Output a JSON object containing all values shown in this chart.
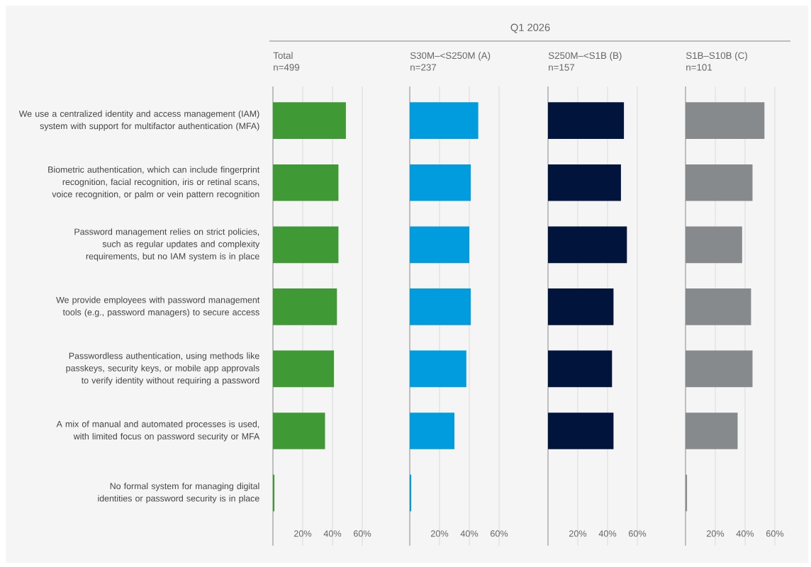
{
  "chart_data": [
    {
      "type": "bar",
      "orientation": "horizontal",
      "title": "Total",
      "subtitle": "n=499",
      "annotations": [
        "Q1 2026"
      ],
      "categories": [
        "We use a centralized identity and access management (IAM) system with support for multifactor authentication (MFA)",
        "Biometric authentication, which can include fingerprint recognition, facial recognition, iris or retinal scans, voice recognition, or palm or vein pattern recognition",
        "Password management relies on strict policies, such as regular updates and complexity requirements, but no IAM system is in place",
        "We provide employees with password management tools (e.g., password managers) to secure access",
        "Passwordless authentication, using methods like passkeys, security keys, or mobile app approvals to verify identity without requiring a password",
        "A mix of manual and automated processes is used, with limited focus on password security or MFA",
        "No formal system for managing digital identities or password security is in place"
      ],
      "values": [
        49,
        44,
        44,
        43,
        41,
        35,
        1
      ],
      "color": "#3f9a35",
      "xlim": [
        0,
        60
      ],
      "xticks": [
        {
          "value": 0,
          "label": null
        },
        {
          "value": 20,
          "label": "20%"
        },
        {
          "value": 40,
          "label": "40%"
        },
        {
          "value": 60,
          "label": "60%"
        }
      ],
      "grid": "x"
    },
    {
      "type": "bar",
      "orientation": "horizontal",
      "title": "S30M–<S250M (A)",
      "subtitle": "n=237",
      "tick_labels": "x",
      "values": [
        46,
        41,
        40,
        41,
        38,
        30,
        1
      ],
      "color": "#009cde",
      "xlim": [
        0,
        60
      ],
      "xticks": [
        {
          "value": 0,
          "label": null
        },
        {
          "value": 20,
          "label": "20%"
        },
        {
          "value": 40,
          "label": "40%"
        },
        {
          "value": 60,
          "label": "60%"
        }
      ],
      "grid": "x"
    },
    {
      "type": "bar",
      "orientation": "horizontal",
      "title": "S250M–<S1B (B)",
      "subtitle": "n=157",
      "tick_labels": "x",
      "values": [
        51,
        49,
        53,
        44,
        43,
        44,
        0
      ],
      "color": "#00143c",
      "xlim": [
        0,
        60
      ],
      "xticks": [
        {
          "value": 0,
          "label": null
        },
        {
          "value": 20,
          "label": "20%"
        },
        {
          "value": 40,
          "label": "40%"
        },
        {
          "value": 60,
          "label": "60%"
        }
      ],
      "grid": "x"
    },
    {
      "type": "bar",
      "orientation": "horizontal",
      "title": "S1B–S10B (C)",
      "subtitle": "n=101",
      "tick_labels": "x",
      "values": [
        53,
        45,
        38,
        44,
        45,
        35,
        1
      ],
      "color": "#878a8c",
      "xlim": [
        0,
        60
      ],
      "xticks": [
        {
          "value": 0,
          "label": null
        },
        {
          "value": 20,
          "label": "20%"
        },
        {
          "value": 40,
          "label": "40%"
        },
        {
          "value": 60,
          "label": "60%"
        }
      ],
      "grid": "x"
    }
  ]
}
